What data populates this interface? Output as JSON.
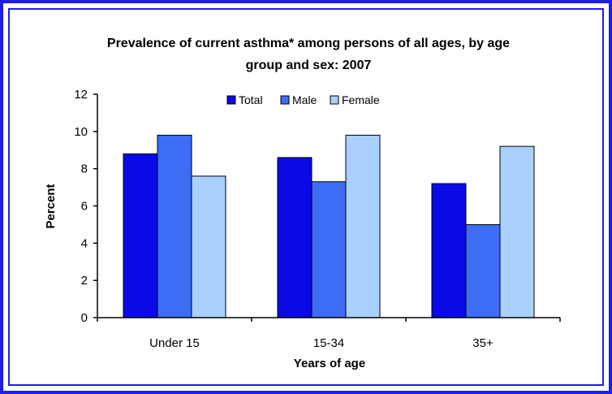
{
  "chart_data": {
    "type": "bar",
    "title_line1": "Prevalence of current asthma* among persons of all ages, by age",
    "title_line2": "group and sex:  2007",
    "xlabel": "Years of age",
    "ylabel": "Percent",
    "ylim": [
      0,
      12
    ],
    "yticks": [
      "0",
      "2",
      "4",
      "6",
      "8",
      "10",
      "12"
    ],
    "categories": [
      "Under 15",
      "15-34",
      "35+"
    ],
    "series": [
      {
        "name": "Total",
        "color": "#0a0ae6",
        "values": [
          8.8,
          8.6,
          7.2
        ]
      },
      {
        "name": "Male",
        "color": "#3d6cf5",
        "values": [
          9.8,
          7.3,
          5.0
        ]
      },
      {
        "name": "Female",
        "color": "#a9d0ff",
        "values": [
          7.6,
          9.8,
          9.2
        ]
      }
    ],
    "legend_position": "top-center",
    "grid": false
  }
}
